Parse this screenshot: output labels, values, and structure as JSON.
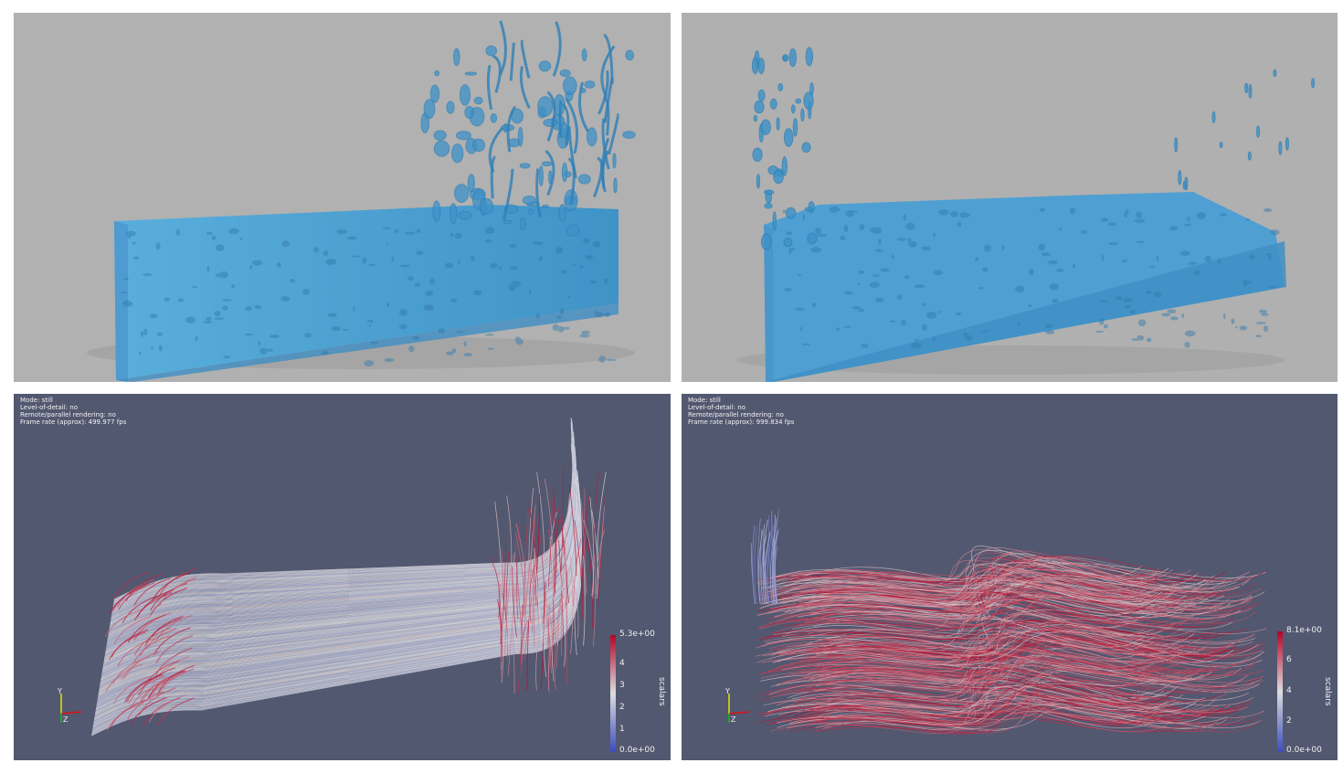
{
  "panels": {
    "top_left": {
      "name": "fluid-surface-render-left"
    },
    "top_right": {
      "name": "fluid-surface-render-right"
    },
    "bottom_left": {
      "info_lines": [
        "Mode: still",
        "Level-of-detail: no",
        "Remote/parallel rendering: no",
        "Frame rate (approx): 499.977 fps"
      ],
      "colorbar": {
        "title": "scalars",
        "max_label": "5.3e+00",
        "min_label": "0.0e+00",
        "ticks": [
          "4",
          "3",
          "2",
          "1"
        ],
        "tick_values": [
          4,
          3,
          2,
          1
        ],
        "range": [
          0,
          5.3
        ]
      },
      "axes_labels": {
        "y": "Y",
        "z": "Z"
      }
    },
    "bottom_right": {
      "info_lines": [
        "Mode: still",
        "Level-of-detail: no",
        "Remote/parallel rendering: no",
        "Frame rate (approx): 999.834 fps"
      ],
      "colorbar": {
        "title": "scalars",
        "max_label": "8.1e+00",
        "min_label": "0.0e+00",
        "ticks": [
          "6",
          "4",
          "2"
        ],
        "tick_values": [
          6,
          4,
          2
        ],
        "range": [
          0,
          8.1
        ]
      },
      "axes_labels": {
        "y": "Y",
        "z": "Z"
      }
    }
  },
  "colors": {
    "water": "#4a9fd0",
    "water_dark": "#2f7fb5",
    "surface_bg": "#b1b1b1",
    "render_bg": "#525870",
    "cmap_low": "#3b4cc0",
    "cmap_mid": "#dddddd",
    "cmap_high": "#b40426"
  }
}
